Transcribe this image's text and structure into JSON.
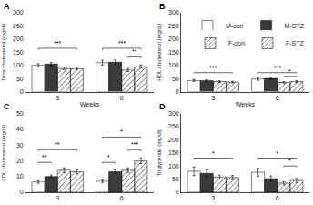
{
  "chart_data": [
    {
      "type": "bar",
      "title": "A",
      "xlabel": "Weeks",
      "ylabel": "Total cholesterol (mg/dl)",
      "categories": [
        "3",
        "6"
      ],
      "ylim": [
        0,
        300
      ],
      "yticks": [
        0,
        50,
        100,
        150,
        200,
        250,
        300
      ],
      "grid": false,
      "series": [
        {
          "name": "M-con",
          "color": "#ffffff",
          "values": [
            100,
            110
          ],
          "errors": [
            6,
            9
          ]
        },
        {
          "name": "M-STZ",
          "color": "#3a3a3a",
          "values": [
            105,
            112
          ],
          "errors": [
            6,
            9
          ]
        },
        {
          "name": "F-con",
          "color": "#d0d0d0",
          "marker": "hatch",
          "values": [
            88,
            82
          ],
          "errors": [
            5,
            6
          ]
        },
        {
          "name": "F-STZ",
          "color": "#707070",
          "marker": "hatch",
          "values": [
            87,
            95
          ],
          "errors": [
            5,
            6
          ]
        }
      ],
      "brackets": [
        {
          "category": "3",
          "from": "M-con",
          "to": "F-STZ",
          "label": "***",
          "height": 165,
          "tick": 6
        },
        {
          "category": "6",
          "from": "M-con",
          "to": "F-STZ",
          "label": "***",
          "height": 165,
          "tick": 6
        },
        {
          "category": "6",
          "from": "F-con",
          "to": "F-STZ",
          "label": "**",
          "height": 132,
          "tick": 5
        }
      ]
    },
    {
      "type": "bar",
      "title": "B",
      "xlabel": "Weeks",
      "ylabel": "HDL cholesterol (mg/dl)",
      "categories": [
        "3",
        "6"
      ],
      "ylim": [
        0,
        300
      ],
      "yticks": [
        0,
        50,
        100,
        150,
        200,
        250,
        300
      ],
      "grid": false,
      "legend": "upper right",
      "series": [
        {
          "name": "M-con",
          "color": "#ffffff",
          "values": [
            42,
            48
          ],
          "errors": [
            4,
            5
          ]
        },
        {
          "name": "M-STZ",
          "color": "#3a3a3a",
          "values": [
            42,
            50
          ],
          "errors": [
            3,
            4
          ]
        },
        {
          "name": "F-con",
          "color": "#d0d0d0",
          "marker": "hatch",
          "values": [
            38,
            35
          ],
          "errors": [
            3,
            3
          ]
        },
        {
          "name": "F-STZ",
          "color": "#707070",
          "marker": "hatch",
          "values": [
            36,
            38
          ],
          "errors": [
            3,
            4
          ]
        }
      ],
      "brackets": [
        {
          "category": "3",
          "from": "M-con",
          "to": "F-STZ",
          "label": "***",
          "height": 72,
          "tick": 2.5
        },
        {
          "category": "6",
          "from": "M-con",
          "to": "F-STZ",
          "label": "***",
          "height": 72,
          "tick": 2.5
        },
        {
          "category": "6",
          "from": "F-con",
          "to": "F-STZ",
          "label": "*",
          "height": 58,
          "tick": 2
        }
      ]
    },
    {
      "type": "bar",
      "title": "C",
      "ylabel": "LDL cholesterol (mg/dl)",
      "categories": [
        "3",
        "6"
      ],
      "ylim": [
        0,
        50
      ],
      "yticks": [
        0,
        10,
        20,
        30,
        40,
        50
      ],
      "grid": false,
      "series": [
        {
          "name": "M-con",
          "color": "#ffffff",
          "values": [
            6.5,
            7
          ],
          "errors": [
            0.8,
            0.8
          ]
        },
        {
          "name": "M-STZ",
          "color": "#3a3a3a",
          "values": [
            10,
            13
          ],
          "errors": [
            1.0,
            1.2
          ]
        },
        {
          "name": "F-con",
          "color": "#d0d0d0",
          "marker": "hatch",
          "values": [
            14,
            14
          ],
          "errors": [
            1.5,
            1.5
          ]
        },
        {
          "name": "F-STZ",
          "color": "#707070",
          "marker": "hatch",
          "values": [
            13,
            20
          ],
          "errors": [
            1.2,
            1.8
          ]
        }
      ],
      "brackets": [
        {
          "category": "3",
          "from": "M-con",
          "to": "M-STZ",
          "label": "**",
          "height": 19,
          "tick": 0.8
        },
        {
          "category": "3",
          "from": "M-con",
          "to": "F-STZ",
          "label": "**",
          "height": 27,
          "tick": 1
        },
        {
          "category": "6",
          "from": "M-con",
          "to": "M-STZ",
          "label": "*",
          "height": 19,
          "tick": 0.8
        },
        {
          "category": "6",
          "from": "F-con",
          "to": "F-STZ",
          "label": "***",
          "height": 27,
          "tick": 1
        },
        {
          "category": "6",
          "from": "M-con",
          "to": "F-STZ",
          "label": "*",
          "height": 35,
          "tick": 1.2
        }
      ]
    },
    {
      "type": "bar",
      "title": "D",
      "ylabel": "Triglyceride (mg/dl)",
      "categories": [
        "3",
        "6"
      ],
      "ylim": [
        0,
        300
      ],
      "yticks": [
        0,
        50,
        100,
        150,
        200,
        250,
        300
      ],
      "grid": false,
      "series": [
        {
          "name": "M-con",
          "color": "#ffffff",
          "values": [
            80,
            76
          ],
          "errors": [
            16,
            15
          ]
        },
        {
          "name": "M-STZ",
          "color": "#3a3a3a",
          "values": [
            72,
            52
          ],
          "errors": [
            13,
            10
          ]
        },
        {
          "name": "F-con",
          "color": "#d0d0d0",
          "marker": "hatch",
          "values": [
            58,
            35
          ],
          "errors": [
            8,
            5
          ]
        },
        {
          "name": "F-STZ",
          "color": "#707070",
          "marker": "hatch",
          "values": [
            56,
            45
          ],
          "errors": [
            8,
            8
          ]
        }
      ],
      "brackets": [
        {
          "category": "3",
          "from": "M-con",
          "to": "F-STZ",
          "label": "*",
          "height": 130,
          "tick": 5
        },
        {
          "category": "6",
          "from": "M-con",
          "to": "F-STZ",
          "label": "*",
          "height": 130,
          "tick": 5
        },
        {
          "category": "6",
          "from": "F-con",
          "to": "F-STZ",
          "label": "*",
          "height": 100,
          "tick": 4
        }
      ]
    }
  ]
}
